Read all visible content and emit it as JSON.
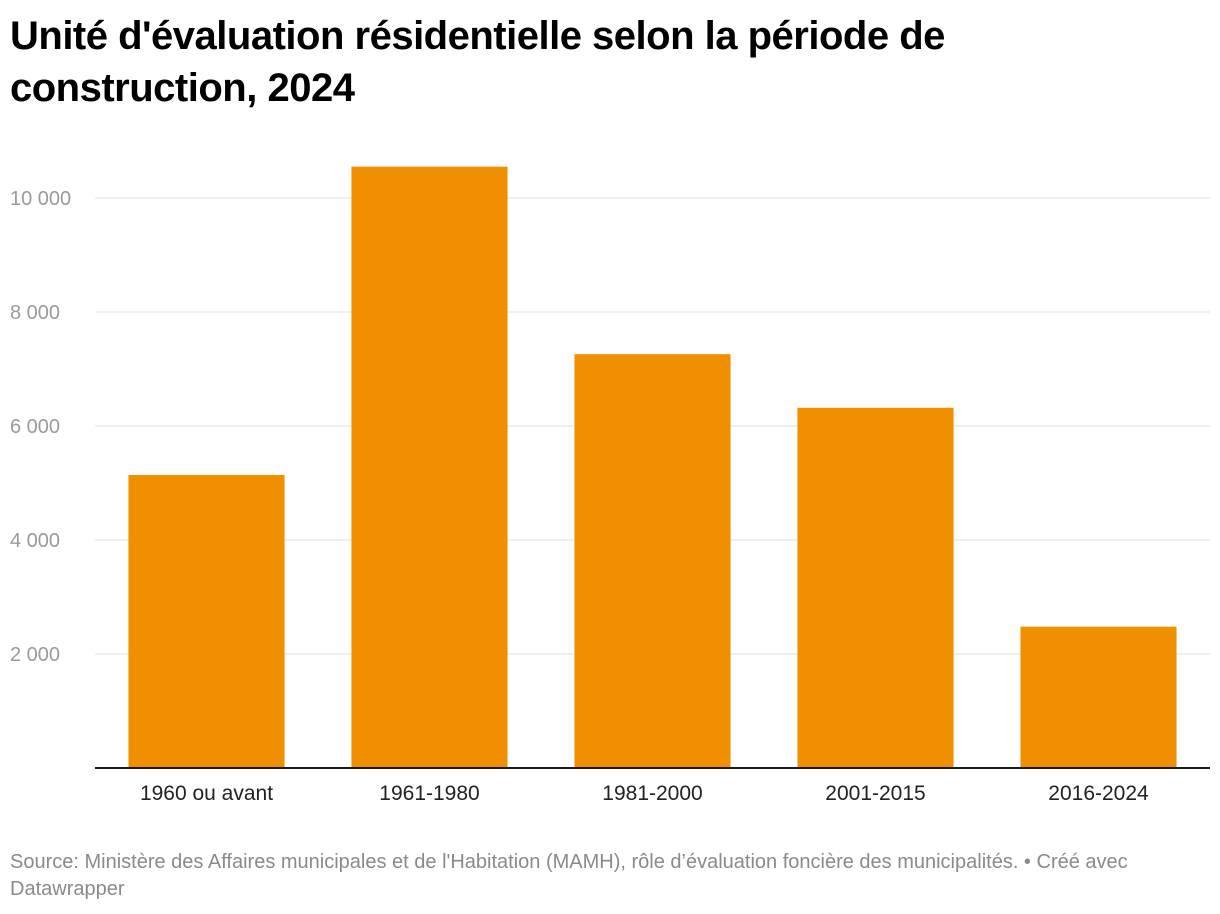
{
  "header": {
    "title": "Unité d'évaluation résidentielle selon la période de construction, 2024"
  },
  "footer": {
    "source": "Source: Ministère des Affaires municipales et de l'Habitation (MAMH), rôle d’évaluation foncière des municipalités.",
    "separator": " • ",
    "credit": "Créé avec Datawrapper"
  },
  "colors": {
    "bar": "#F09000",
    "gridline": "#E0E0E0",
    "axis": "#1A1A1A",
    "tick_label": "#9A9A9A",
    "category_label": "#222222"
  },
  "chart_data": {
    "type": "bar",
    "title": "Unité d'évaluation résidentielle selon la période de construction, 2024",
    "xlabel": "",
    "ylabel": "",
    "categories": [
      "1960 ou avant",
      "1961-1980",
      "1981-2000",
      "2001-2015",
      "2016-2024"
    ],
    "values": [
      5140,
      10550,
      7260,
      6320,
      2480
    ],
    "ylim": [
      0,
      11000
    ],
    "yticks": [
      2000,
      4000,
      6000,
      8000,
      10000
    ],
    "ytick_labels": [
      "2 000",
      "4 000",
      "6 000",
      "8 000",
      "10 000"
    ],
    "grid": true,
    "legend": "none"
  }
}
